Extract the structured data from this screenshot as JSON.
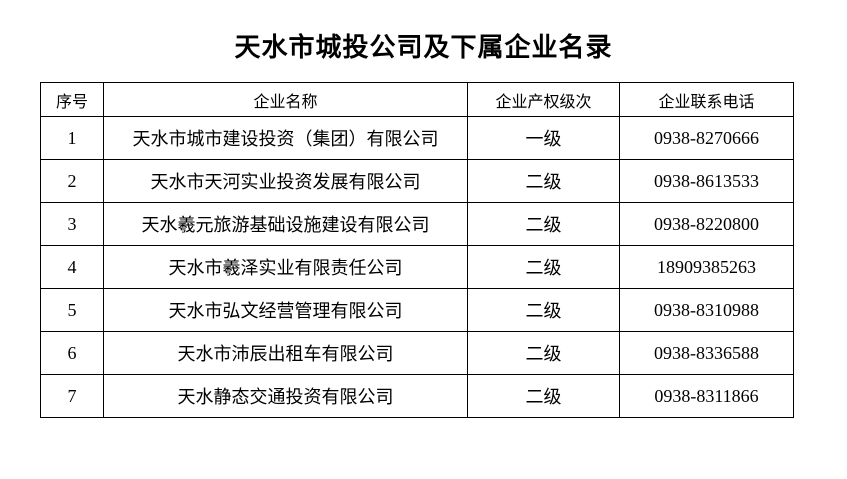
{
  "page": {
    "title": "天水市城投公司及下属企业名录"
  },
  "table": {
    "columns": [
      "序号",
      "企业名称",
      "企业产权级次",
      "企业联系电话"
    ],
    "rows": [
      {
        "no": "1",
        "name": "天水市城市建设投资（集团）有限公司",
        "level": "一级",
        "phone": "0938-8270666"
      },
      {
        "no": "2",
        "name": "天水市天河实业投资发展有限公司",
        "level": "二级",
        "phone": "0938-8613533"
      },
      {
        "no": "3",
        "name": "天水羲元旅游基础设施建设有限公司",
        "level": "二级",
        "phone": "0938-8220800"
      },
      {
        "no": "4",
        "name": "天水市羲泽实业有限责任公司",
        "level": "二级",
        "phone": "18909385263"
      },
      {
        "no": "5",
        "name": "天水市弘文经营管理有限公司",
        "level": "二级",
        "phone": "0938-8310988"
      },
      {
        "no": "6",
        "name": "天水市沛辰出租车有限公司",
        "level": "二级",
        "phone": "0938-8336588"
      },
      {
        "no": "7",
        "name": "天水静态交通投资有限公司",
        "level": "二级",
        "phone": "0938-8311866"
      }
    ]
  }
}
